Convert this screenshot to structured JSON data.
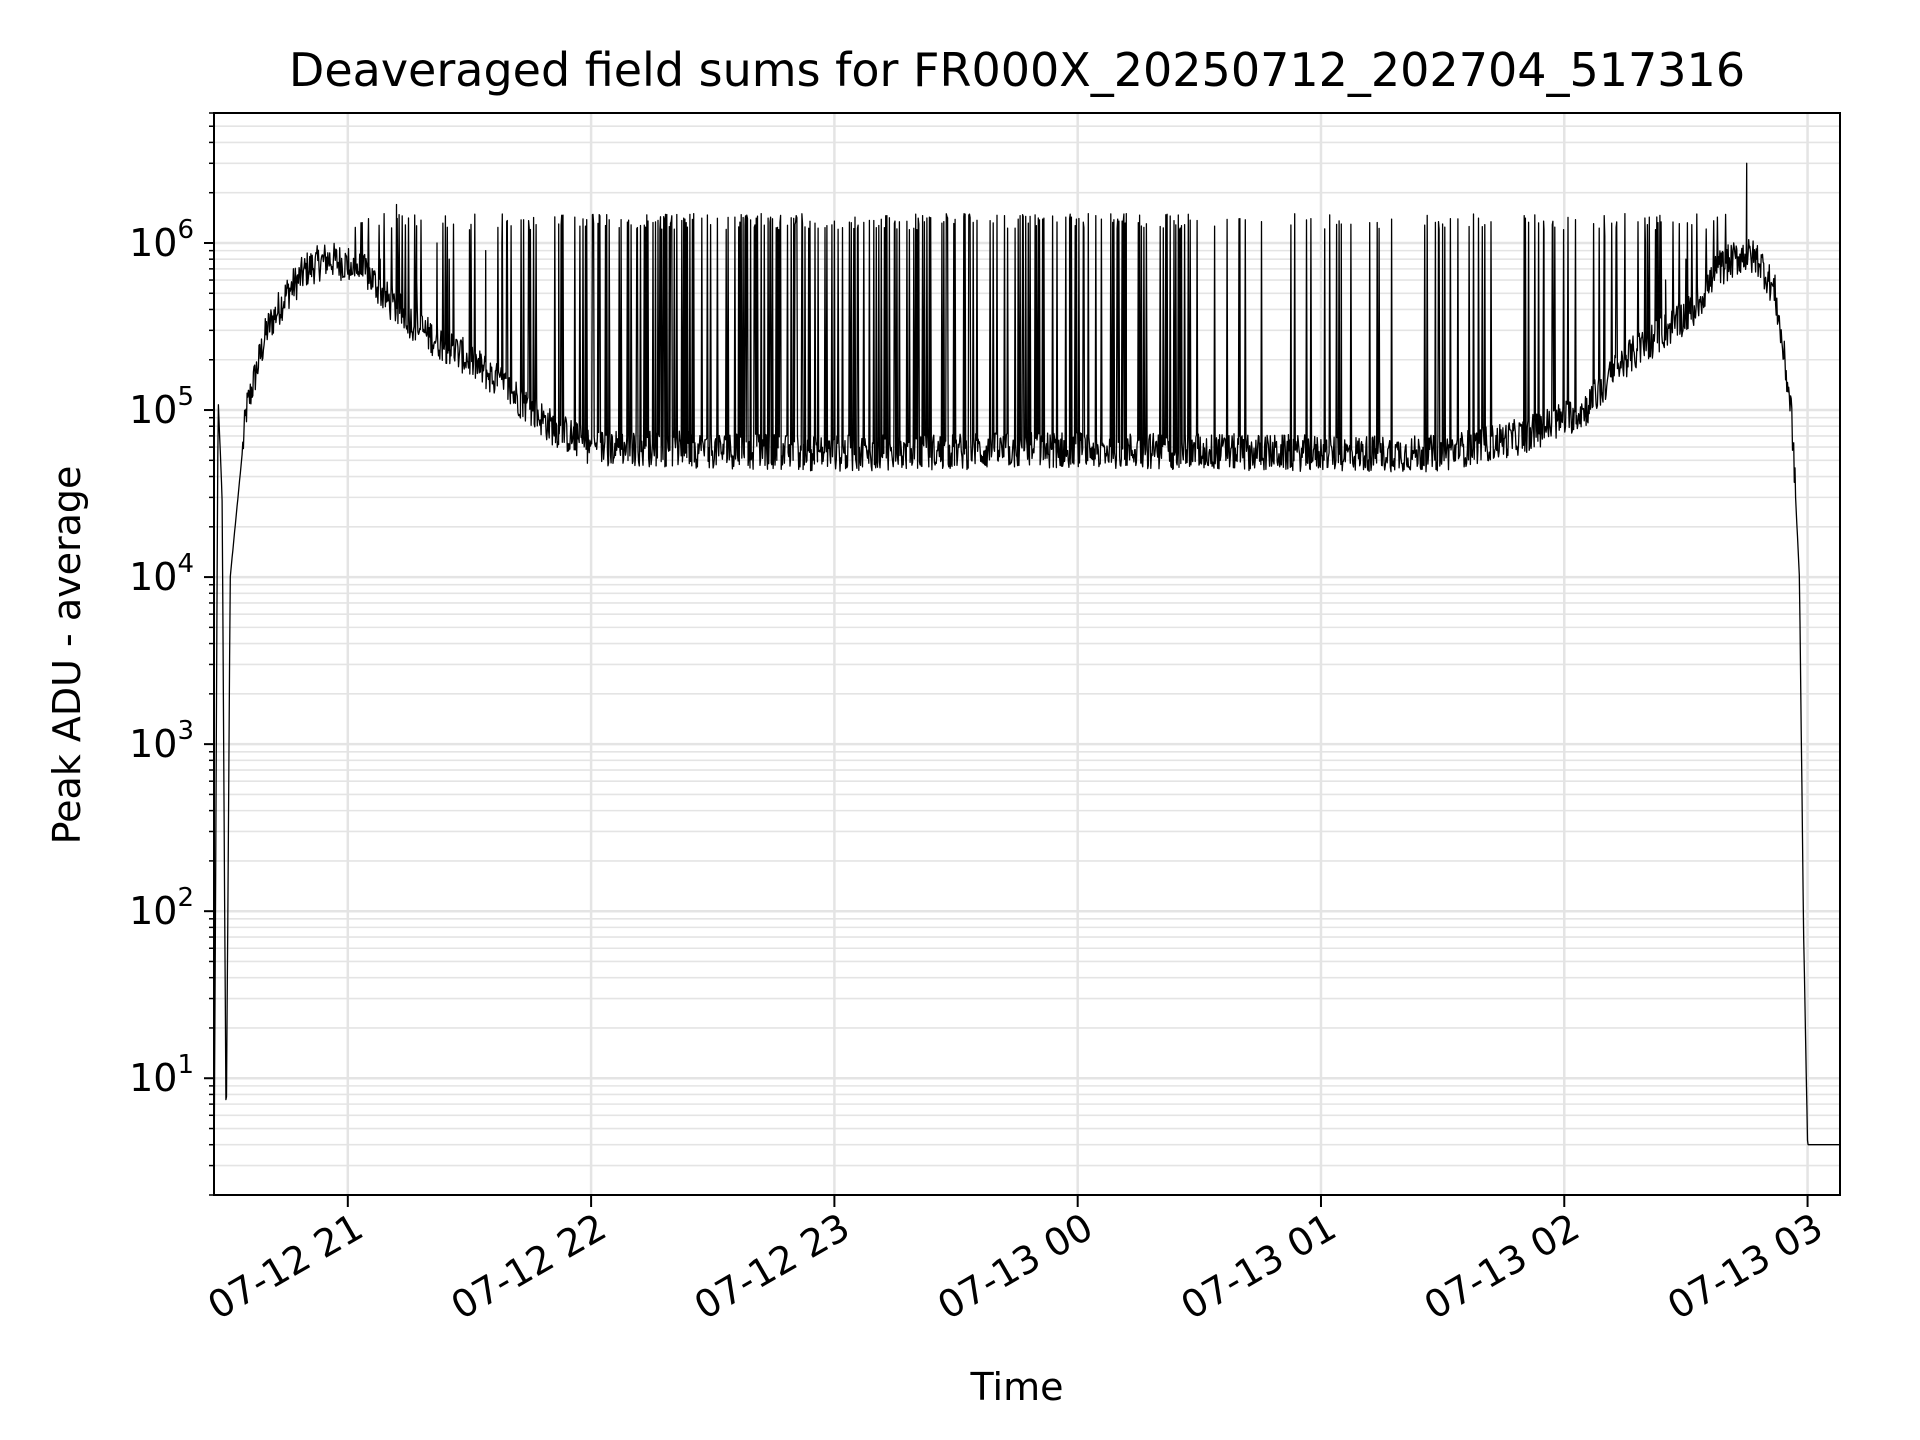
{
  "chart_data": {
    "type": "line",
    "title": "Deaveraged field sums for FR000X_20250712_202704_517316",
    "xlabel": "Time",
    "ylabel": "Peak ADU - average",
    "xscale": "time",
    "yscale": "log",
    "xlim": [
      "2025-07-12 20:27",
      "2025-07-13 03:08"
    ],
    "ylim": [
      2,
      6000000
    ],
    "grid": true,
    "line_color": "#000000",
    "x_ticks": [
      {
        "t": "2025-07-12 21:00",
        "label": "07-12 21"
      },
      {
        "t": "2025-07-12 22:00",
        "label": "07-12 22"
      },
      {
        "t": "2025-07-12 23:00",
        "label": "07-12 23"
      },
      {
        "t": "2025-07-13 00:00",
        "label": "07-13 00"
      },
      {
        "t": "2025-07-13 01:00",
        "label": "07-13 01"
      },
      {
        "t": "2025-07-13 02:00",
        "label": "07-13 02"
      },
      {
        "t": "2025-07-13 03:00",
        "label": "07-13 03"
      }
    ],
    "y_ticks": [
      {
        "value": 10,
        "base": "10",
        "exp": "1"
      },
      {
        "value": 100,
        "base": "10",
        "exp": "2"
      },
      {
        "value": 1000,
        "base": "10",
        "exp": "3"
      },
      {
        "value": 10000,
        "base": "10",
        "exp": "4"
      },
      {
        "value": 100000,
        "base": "10",
        "exp": "5"
      },
      {
        "value": 1000000,
        "base": "10",
        "exp": "6"
      }
    ],
    "series": [
      {
        "baseline": [
          [
            "2025-07-12 20:27",
            2
          ],
          [
            "2025-07-12 20:28",
            120000
          ],
          [
            "2025-07-12 20:29",
            30000
          ],
          [
            "2025-07-12 20:30",
            4
          ],
          [
            "2025-07-12 20:31",
            10000
          ],
          [
            "2025-07-12 20:35",
            100000
          ],
          [
            "2025-07-12 20:40",
            300000
          ],
          [
            "2025-07-12 20:45",
            500000
          ],
          [
            "2025-07-12 20:50",
            700000
          ],
          [
            "2025-07-12 20:55",
            800000
          ],
          [
            "2025-07-12 21:00",
            750000
          ],
          [
            "2025-07-12 21:05",
            650000
          ],
          [
            "2025-07-12 21:10",
            450000
          ],
          [
            "2025-07-12 21:15",
            350000
          ],
          [
            "2025-07-12 21:20",
            280000
          ],
          [
            "2025-07-12 21:30",
            200000
          ],
          [
            "2025-07-12 21:40",
            130000
          ],
          [
            "2025-07-12 21:50",
            80000
          ],
          [
            "2025-07-12 22:00",
            60000
          ],
          [
            "2025-07-12 23:00",
            55000
          ],
          [
            "2025-07-13 00:00",
            58000
          ],
          [
            "2025-07-13 01:00",
            55000
          ],
          [
            "2025-07-13 01:30",
            55000
          ],
          [
            "2025-07-13 01:50",
            70000
          ],
          [
            "2025-07-13 02:05",
            100000
          ],
          [
            "2025-07-13 02:15",
            200000
          ],
          [
            "2025-07-13 02:25",
            300000
          ],
          [
            "2025-07-13 02:32",
            400000
          ],
          [
            "2025-07-13 02:38",
            700000
          ],
          [
            "2025-07-13 02:44",
            850000
          ],
          [
            "2025-07-13 02:48",
            800000
          ],
          [
            "2025-07-13 02:52",
            500000
          ],
          [
            "2025-07-13 02:56",
            100000
          ],
          [
            "2025-07-13 02:58",
            10000
          ],
          [
            "2025-07-13 02:59",
            80
          ],
          [
            "2025-07-13 03:00",
            4
          ],
          [
            "2025-07-13 03:08",
            4
          ]
        ],
        "spikes": [
          [
            "2025-07-12 21:05",
            1000000
          ],
          [
            "2025-07-12 21:08",
            800000
          ],
          [
            "2025-07-12 21:12",
            1700000
          ],
          [
            "2025-07-12 21:17",
            600000
          ],
          [
            "2025-07-12 21:22",
            1000000
          ],
          [
            "2025-07-12 21:25",
            800000
          ],
          [
            "2025-07-12 21:30",
            1200000
          ],
          [
            "2025-07-12 21:34",
            900000
          ],
          [
            "2025-07-12 21:38",
            1000000
          ],
          [
            "2025-07-12 21:45",
            1200000
          ],
          [
            "2025-07-12 21:52",
            1300000
          ],
          [
            "2025-07-12 22:38",
            1400000
          ],
          [
            "2025-07-12 23:32",
            1500000
          ],
          [
            "2025-07-12 23:58",
            1400000
          ],
          [
            "2025-07-13 00:12",
            1500000
          ],
          [
            "2025-07-13 00:40",
            1400000
          ],
          [
            "2025-07-13 01:05",
            1300000
          ],
          [
            "2025-07-13 01:30",
            1300000
          ],
          [
            "2025-07-13 01:55",
            1200000
          ],
          [
            "2025-07-13 02:10",
            1100000
          ],
          [
            "2025-07-13 02:20",
            1000000
          ],
          [
            "2025-07-13 02:25",
            600000
          ],
          [
            "2025-07-13 02:30",
            800000
          ],
          [
            "2025-07-13 02:45",
            3000000
          ]
        ]
      }
    ]
  }
}
